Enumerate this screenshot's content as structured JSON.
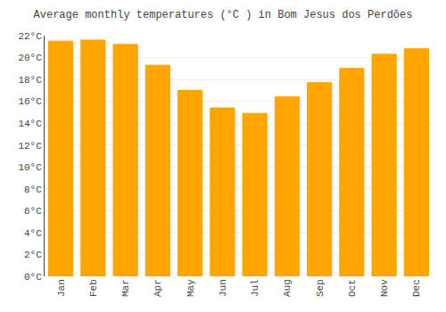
{
  "chart_data": {
    "type": "bar",
    "title": "Average monthly temperatures (°C ) in Bom Jesus dos Perdões",
    "categories": [
      "Jan",
      "Feb",
      "Mar",
      "Apr",
      "May",
      "Jun",
      "Jul",
      "Aug",
      "Sep",
      "Oct",
      "Nov",
      "Dec"
    ],
    "values": [
      21.5,
      21.6,
      21.2,
      19.3,
      17.0,
      15.4,
      14.9,
      16.4,
      17.7,
      19.0,
      20.3,
      20.8
    ],
    "color": "#FFA500",
    "ylim": [
      0,
      22
    ],
    "yticks": [
      {
        "value": 0,
        "label": "0°C"
      },
      {
        "value": 2,
        "label": "2°C"
      },
      {
        "value": 4,
        "label": "4°C"
      },
      {
        "value": 6,
        "label": "6°C"
      },
      {
        "value": 8,
        "label": "8°C"
      },
      {
        "value": 10,
        "label": "10°C"
      },
      {
        "value": 12,
        "label": "12°C"
      },
      {
        "value": 14,
        "label": "14°C"
      },
      {
        "value": 16,
        "label": "16°C"
      },
      {
        "value": 18,
        "label": "18°C"
      },
      {
        "value": 20,
        "label": "20°C"
      },
      {
        "value": 22,
        "label": "22°C"
      }
    ],
    "grid": true
  }
}
